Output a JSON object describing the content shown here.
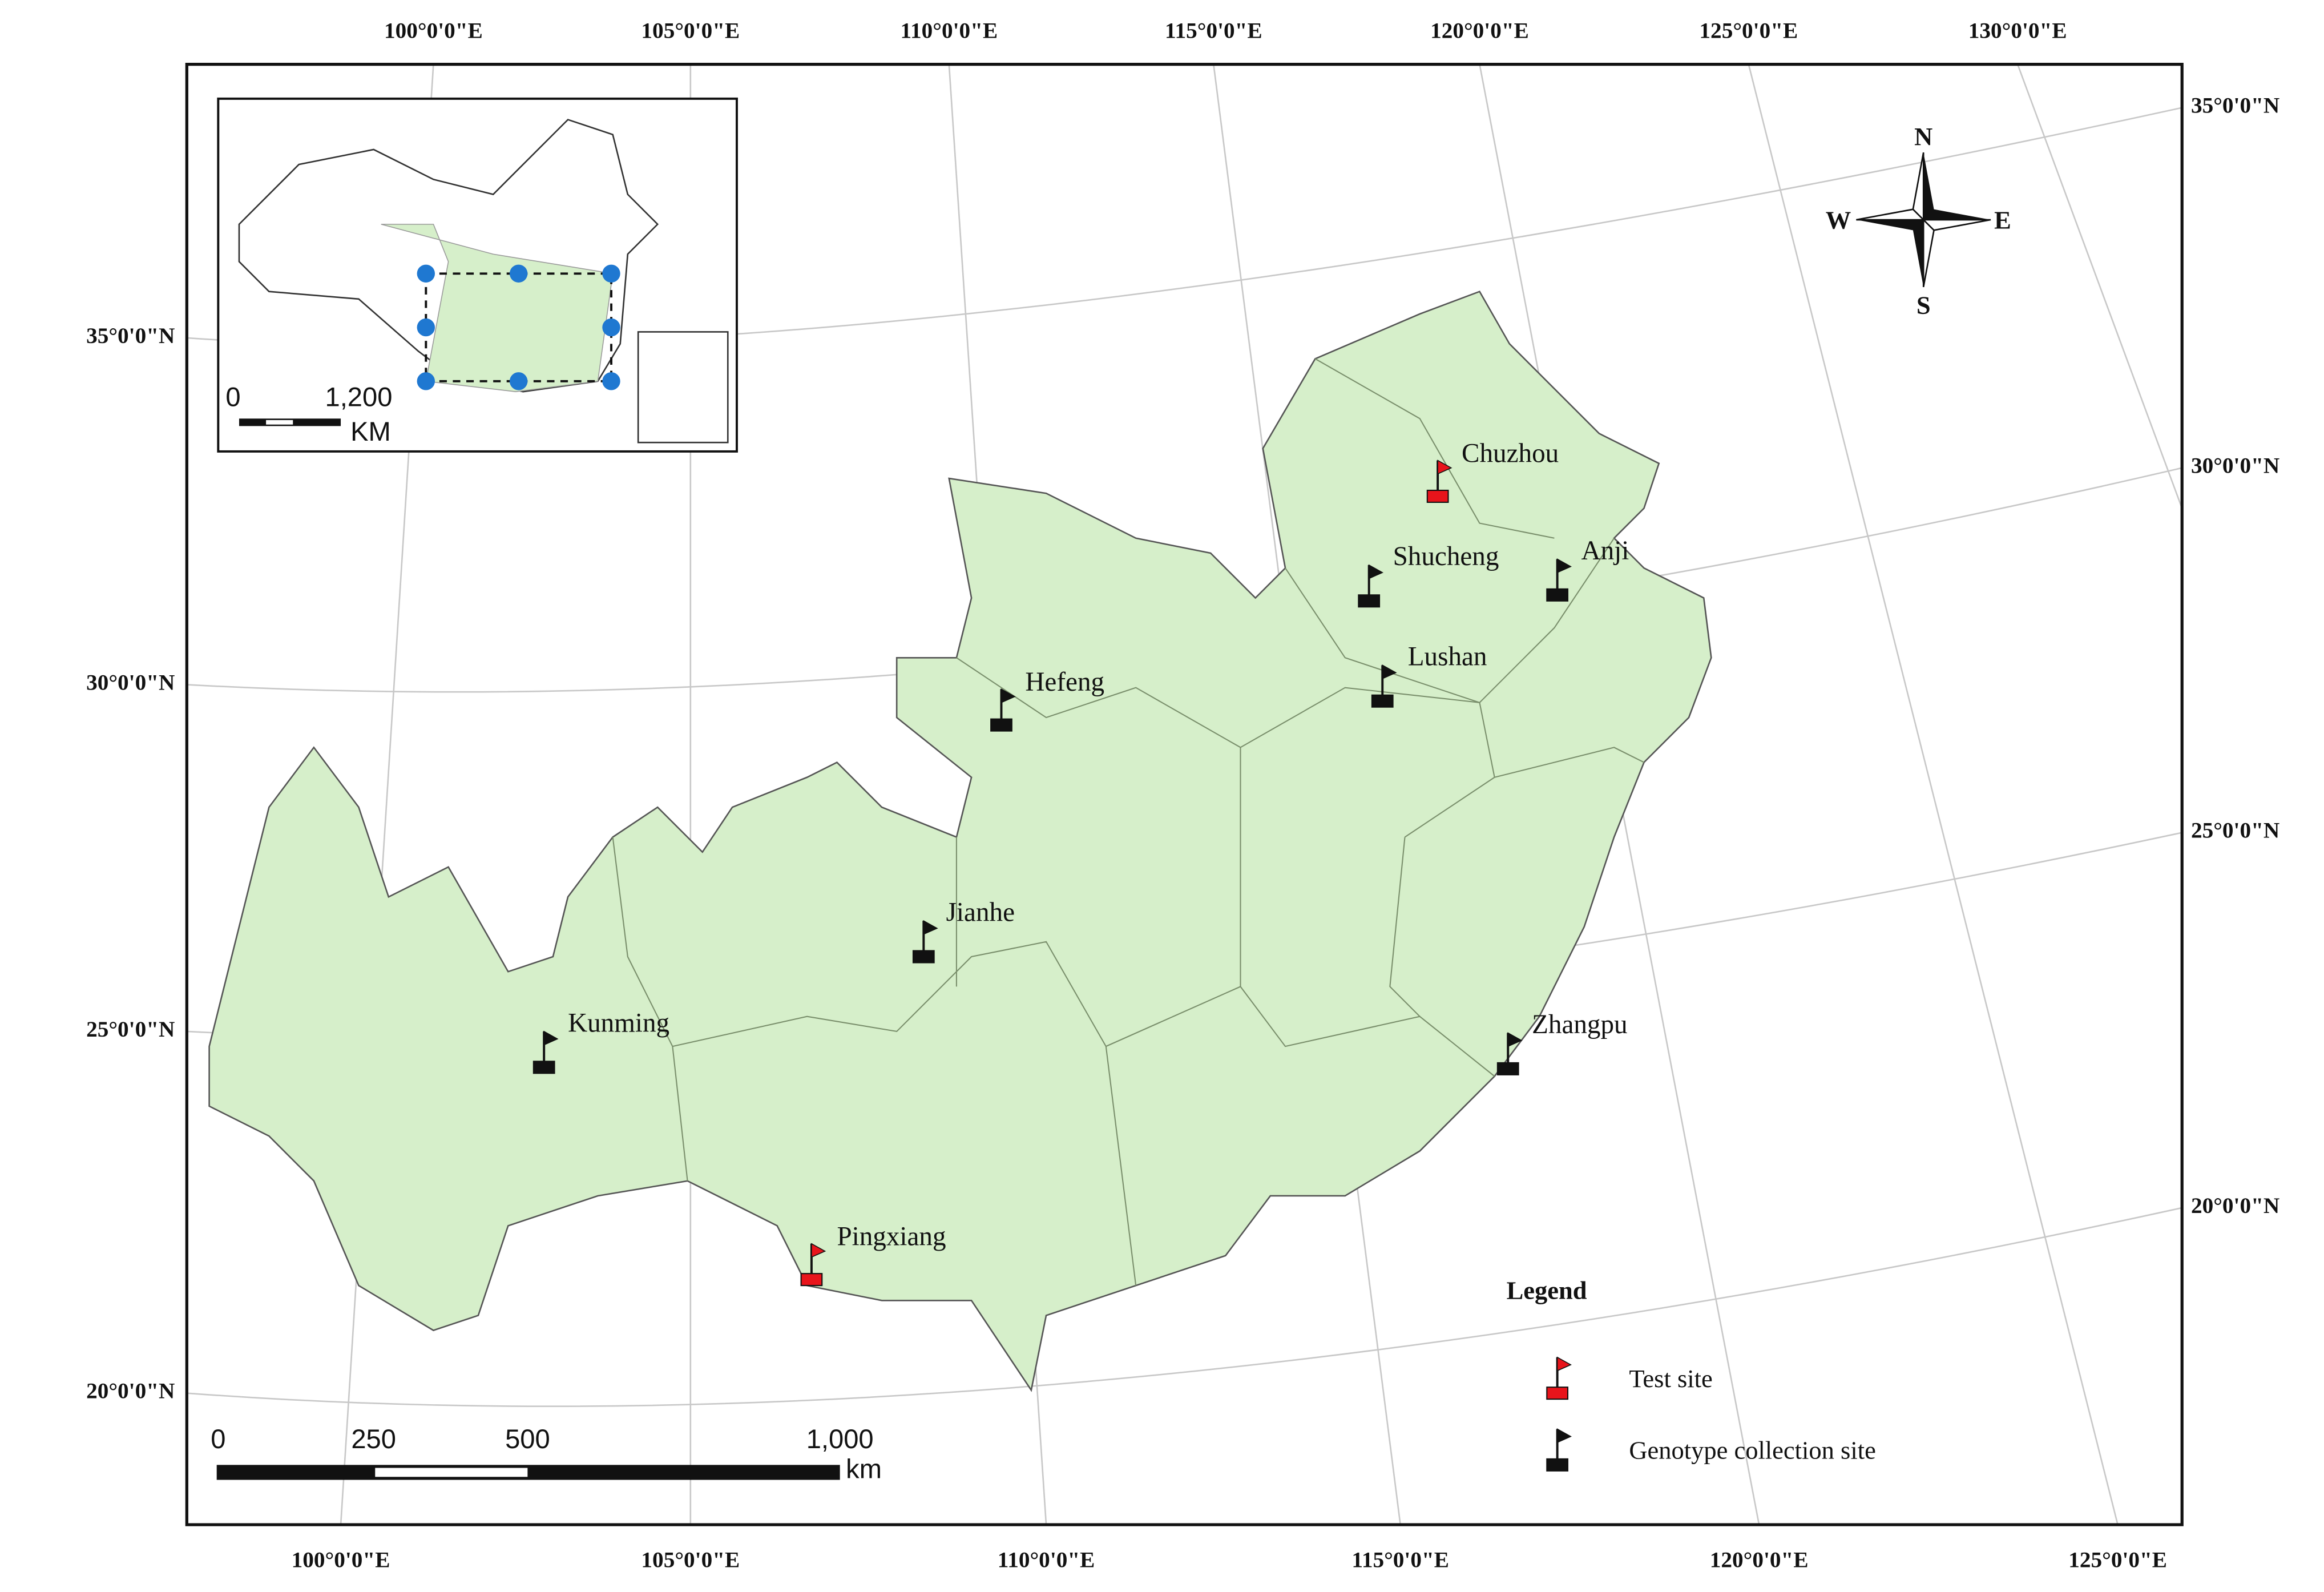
{
  "map": {
    "top_labels": [
      "100°0'0\"E",
      "105°0'0\"E",
      "110°0'0\"E",
      "115°0'0\"E",
      "120°0'0\"E",
      "125°0'0\"E",
      "130°0'0\"E"
    ],
    "bottom_labels": [
      "100°0'0\"E",
      "105°0'0\"E",
      "110°0'0\"E",
      "115°0'0\"E",
      "120°0'0\"E",
      "125°0'0\"E"
    ],
    "left_labels": [
      "35°0'0\"N",
      "30°0'0\"N",
      "25°0'0\"N",
      "20°0'0\"N"
    ],
    "right_labels": [
      "35°0'0\"N",
      "30°0'0\"N",
      "25°0'0\"N",
      "20°0'0\"N"
    ],
    "test_sites": [
      "Chuzhou",
      "Pingxiang"
    ],
    "collection_sites": [
      "Shucheng",
      "Anji",
      "Lushan",
      "Hefeng",
      "Jianhe",
      "Kunming",
      "Zhangpu"
    ],
    "compass": [
      "N",
      "S",
      "W",
      "E"
    ],
    "scale_bar": {
      "labels": [
        "0",
        "250",
        "500",
        "1,000"
      ],
      "unit": "km"
    },
    "inset": {
      "scale_labels": [
        "0",
        "1,200"
      ],
      "unit": "KM"
    },
    "legend": {
      "title": "Legend",
      "items": [
        "Test site",
        "Genotype collection site"
      ]
    }
  }
}
